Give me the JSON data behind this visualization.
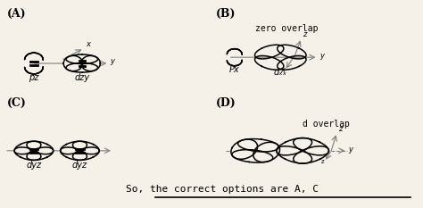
{
  "background_color": "#f5f0e8",
  "label_font": 9,
  "panels": {
    "A": {
      "label": "(A)"
    },
    "B": {
      "label": "(B)",
      "note": "zero overlap"
    },
    "C": {
      "label": "(C)"
    },
    "D": {
      "label": "(D)",
      "note": "d overlap"
    }
  },
  "conclusion": "So, the correct options are A, C"
}
